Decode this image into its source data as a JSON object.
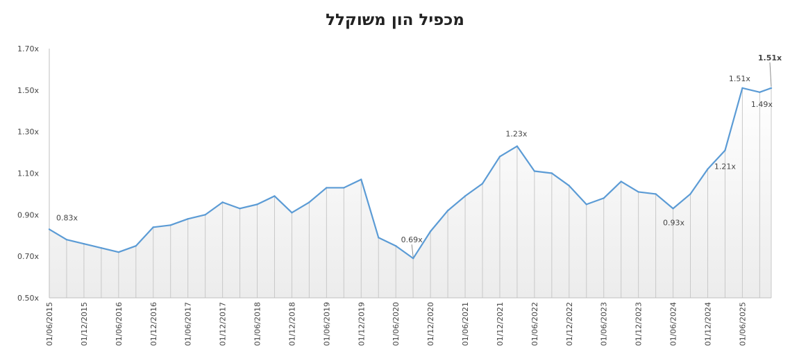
{
  "chart_data": {
    "type": "area",
    "title": "מכפיל הון משוקלל",
    "xlabel": "",
    "ylabel": "",
    "ylim": [
      0.5,
      1.7
    ],
    "y_ticks": [
      "1.70x",
      "1.50x",
      "1.30x",
      "1.10x",
      "0.90x",
      "0.70x",
      "0.50x"
    ],
    "x_ticks": [
      "01/06/2015",
      "01/12/2015",
      "01/06/2016",
      "01/12/2016",
      "01/06/2017",
      "01/12/2017",
      "01/06/2018",
      "01/12/2018",
      "01/06/2019",
      "01/12/2019",
      "01/06/2020",
      "01/12/2020",
      "01/06/2021",
      "01/12/2021",
      "01/06/2022",
      "01/12/2022",
      "01/06/2023",
      "01/12/2023",
      "01/06/2024",
      "01/12/2024",
      "01/06/2025"
    ],
    "grid": false,
    "series": [
      {
        "color": "#5b9bd5",
        "x": [
          "2015-06",
          "2015-09",
          "2015-12",
          "2016-03",
          "2016-06",
          "2016-09",
          "2016-12",
          "2017-03",
          "2017-06",
          "2017-09",
          "2017-12",
          "2018-03",
          "2018-06",
          "2018-09",
          "2018-12",
          "2019-03",
          "2019-06",
          "2019-09",
          "2019-12",
          "2020-03",
          "2020-06",
          "2020-09",
          "2020-12",
          "2021-03",
          "2021-06",
          "2021-09",
          "2021-12",
          "2022-03",
          "2022-06",
          "2022-09",
          "2022-12",
          "2023-03",
          "2023-06",
          "2023-09",
          "2023-12",
          "2024-03",
          "2024-06",
          "2024-09",
          "2024-12",
          "2025-03",
          "2025-06",
          "2025-09",
          "2025-11"
        ],
        "values": [
          0.83,
          0.78,
          0.76,
          0.74,
          0.72,
          0.75,
          0.84,
          0.85,
          0.88,
          0.9,
          0.96,
          0.93,
          0.95,
          0.99,
          0.91,
          0.96,
          1.03,
          1.03,
          1.07,
          0.79,
          0.75,
          0.69,
          0.82,
          0.92,
          0.99,
          1.05,
          1.18,
          1.23,
          1.11,
          1.1,
          1.04,
          0.95,
          0.98,
          1.06,
          1.01,
          1.0,
          0.93,
          1.0,
          1.12,
          1.21,
          1.51,
          1.49,
          1.51
        ]
      }
    ],
    "annotations": [
      {
        "text": "0.83x",
        "index": 0
      },
      {
        "text": "0.69x",
        "index": 21
      },
      {
        "text": "1.23x",
        "index": 27
      },
      {
        "text": "0.93x",
        "index": 36
      },
      {
        "text": "1.21x",
        "index": 39
      },
      {
        "text": "1.51x",
        "index": 40
      },
      {
        "text": "1.49x",
        "index": 41
      },
      {
        "text": "1.51x",
        "index": 42
      }
    ]
  }
}
